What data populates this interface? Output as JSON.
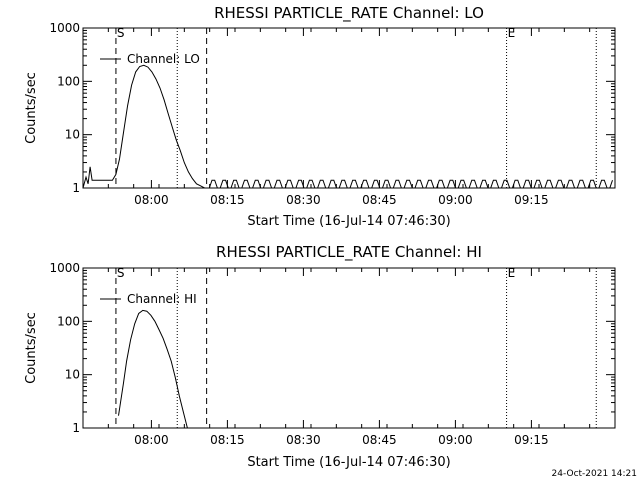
{
  "footer": {
    "timestamp": "24-Oct-2021 14:21"
  },
  "chart_data": [
    {
      "type": "line",
      "title": "RHESSI PARTICLE_RATE Channel: LO",
      "xlabel": "Start Time (16-Jul-14 07:46:30)",
      "ylabel": "Counts/sec",
      "yscale": "log",
      "ylim": [
        1,
        1000
      ],
      "xlim_minutes_after_start": [
        0,
        105
      ],
      "x_ticks": [
        "08:00",
        "08:15",
        "08:30",
        "08:45",
        "09:00",
        "09:15"
      ],
      "y_ticks": [
        "1",
        "10",
        "100",
        "1000"
      ],
      "legend": {
        "label": "Channel: LO",
        "placement": "top-left"
      },
      "markers": [
        {
          "label": "S",
          "minute": 6.5,
          "style": "dashed"
        },
        {
          "label": "",
          "minute": 18.6,
          "style": "dotted"
        },
        {
          "label": "",
          "minute": 24.4,
          "style": "dashed"
        },
        {
          "label": "E",
          "minute": 83.6,
          "style": "dotted"
        },
        {
          "label": "",
          "minute": 101.3,
          "style": "dotted"
        }
      ],
      "series": [
        {
          "name": "Channel: LO",
          "curve_minutes": [
            0.0,
            0.6,
            1.0,
            1.4,
            1.8,
            2.2,
            2.8,
            3.5,
            4.2,
            5.0,
            5.8,
            6.5,
            7.2,
            8.0,
            8.8,
            9.6,
            10.4,
            11.2,
            12.0,
            12.8,
            13.6,
            14.4,
            15.2,
            16.0,
            16.8,
            17.6,
            18.4,
            19.2,
            20.0,
            20.8,
            21.6,
            22.4,
            23.2,
            24.0
          ],
          "curve_values": [
            1,
            1.6,
            1.2,
            2.5,
            1.4,
            1.4,
            1.4,
            1.4,
            1.4,
            1.4,
            1.4,
            1.8,
            3.5,
            11,
            35,
            85,
            150,
            190,
            200,
            185,
            150,
            110,
            75,
            45,
            25,
            14,
            8,
            5,
            3,
            2,
            1.5,
            1.2,
            1.1,
            1
          ],
          "baseline_minutes": [
            24.4,
            104.5
          ],
          "baseline_values": [
            1,
            1.4
          ],
          "baseline_segments": 150
        }
      ]
    },
    {
      "type": "line",
      "title": "RHESSI PARTICLE_RATE Channel: HI",
      "xlabel": "Start Time (16-Jul-14 07:46:30)",
      "ylabel": "Counts/sec",
      "yscale": "log",
      "ylim": [
        1,
        1000
      ],
      "xlim_minutes_after_start": [
        0,
        105
      ],
      "x_ticks": [
        "08:00",
        "08:15",
        "08:30",
        "08:45",
        "09:00",
        "09:15"
      ],
      "y_ticks": [
        "1",
        "10",
        "100",
        "1000"
      ],
      "legend": {
        "label": "Channel: HI",
        "placement": "top-left"
      },
      "markers": [
        {
          "label": "S",
          "minute": 6.5,
          "style": "dashed"
        },
        {
          "label": "",
          "minute": 18.6,
          "style": "dotted"
        },
        {
          "label": "",
          "minute": 24.4,
          "style": "dashed"
        },
        {
          "label": "E",
          "minute": 83.6,
          "style": "dotted"
        },
        {
          "label": "",
          "minute": 101.3,
          "style": "dotted"
        }
      ],
      "series": [
        {
          "name": "Channel: HI",
          "curve_minutes": [
            7.0,
            7.4,
            8.0,
            8.6,
            9.4,
            10.2,
            11.0,
            11.8,
            12.6,
            13.4,
            14.2,
            15.0,
            15.8,
            16.6,
            17.4,
            18.2,
            19.0,
            19.8,
            20.6
          ],
          "curve_values": [
            1.7,
            3,
            7,
            18,
            45,
            90,
            140,
            160,
            155,
            130,
            100,
            70,
            48,
            30,
            18,
            9,
            4,
            2,
            1
          ]
        }
      ]
    }
  ]
}
